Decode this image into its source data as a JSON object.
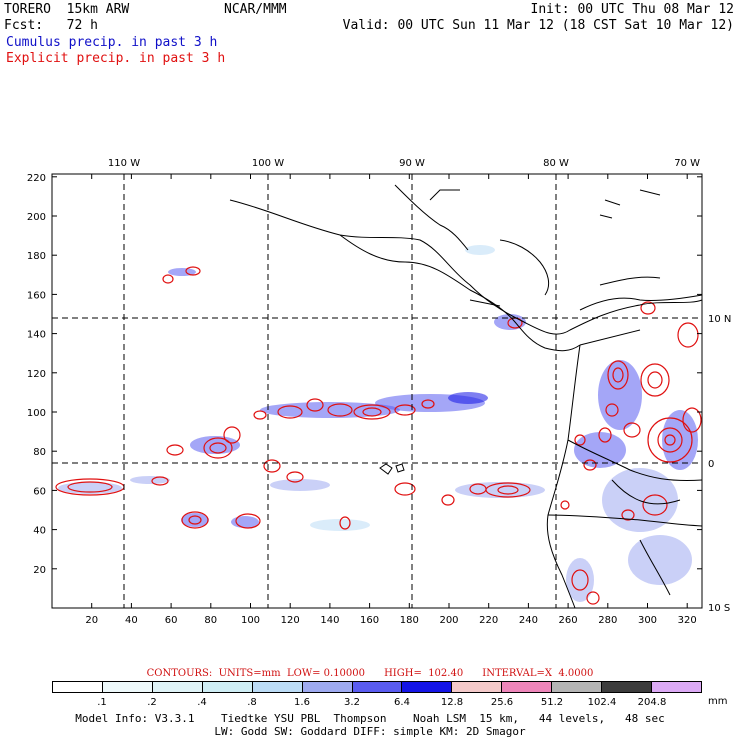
{
  "header": {
    "model": "TORERO  15km ARW",
    "center": "NCAR/MMM",
    "init": "Init: 00 UTC Thu 08 Mar 12",
    "fcst": "Fcst:   72 h",
    "valid": "Valid: 00 UTC Sun 11 Mar 12 (18 CST Sat 10 Mar 12)",
    "field_blue": "Cumulus precip. in past 3 h",
    "field_red": "Explicit precip. in past 3 h"
  },
  "colors": {
    "blue_text": "#1010c8",
    "red_text": "#e01010",
    "contour": "#e01010"
  },
  "map": {
    "lon_labels": [
      "110 W",
      "100 W",
      "90 W",
      "80 W",
      "70 W"
    ],
    "lat_labels": [
      "10 N",
      "0",
      "10 S"
    ],
    "x_ticks": [
      "20",
      "40",
      "60",
      "80",
      "100",
      "120",
      "140",
      "160",
      "180",
      "200",
      "220",
      "240",
      "260",
      "280",
      "300",
      "320"
    ],
    "y_ticks": [
      "20",
      "40",
      "60",
      "80",
      "100",
      "120",
      "140",
      "160",
      "180",
      "200",
      "220"
    ]
  },
  "legend": {
    "contours_line": "CONTOURS:  UNITS=mm  LOW= 0.10000      HIGH=  102.40      INTERVAL=X  4.0000",
    "unit": "mm",
    "levels": [
      ".1",
      ".2",
      ".4",
      ".8",
      "1.6",
      "3.2",
      "6.4",
      "12.8",
      "25.6",
      "51.2",
      "102.4",
      "204.8"
    ],
    "bar_colors": [
      "#ffffff",
      "#eef9fb",
      "#dff3f7",
      "#cfeef5",
      "#bcdcf6",
      "#9eaaf0",
      "#5a5cf0",
      "#1414e6",
      "#f4caca",
      "#ee86ba",
      "#b4b4b4",
      "#3c3c3c",
      "#dcaaf5"
    ]
  },
  "footer": {
    "line1": "Model Info: V3.3.1    Tiedtke YSU PBL  Thompson    Noah LSM  15 km,   44 levels,   48 sec",
    "line2": "LW: Godd SW: Goddard DIFF: simple KM: 2D Smagor"
  }
}
